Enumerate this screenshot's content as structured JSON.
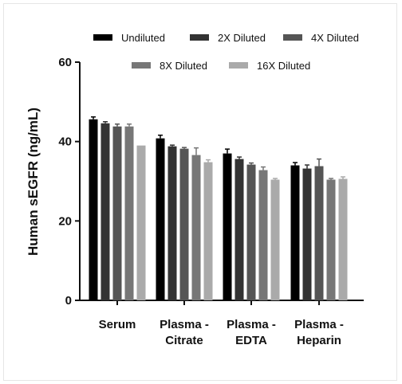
{
  "chart_data": {
    "type": "bar",
    "title": "",
    "xlabel": "",
    "ylabel": "Human sEGFR (ng/mL)",
    "ylim": [
      0,
      60
    ],
    "yticks": [
      0,
      20,
      40,
      60
    ],
    "grid": false,
    "legend_position": "top",
    "categories": [
      [
        "Serum"
      ],
      [
        "Plasma -",
        "Citrate"
      ],
      [
        "Plasma -",
        "EDTA"
      ],
      [
        "Plasma -",
        "Heparin"
      ]
    ],
    "series": [
      {
        "name": "Undiluted",
        "color": "#000000",
        "values": [
          45.6,
          40.8,
          37.0,
          34.0
        ],
        "errors": [
          0.6,
          0.8,
          1.1,
          0.7
        ]
      },
      {
        "name": "2X Diluted",
        "color": "#333333",
        "values": [
          44.6,
          38.8,
          35.6,
          33.2
        ],
        "errors": [
          0.4,
          0.3,
          0.5,
          0.9
        ]
      },
      {
        "name": "4X Diluted",
        "color": "#555555",
        "values": [
          43.8,
          38.2,
          34.2,
          33.8
        ],
        "errors": [
          0.6,
          0.3,
          0.4,
          1.8
        ]
      },
      {
        "name": "8X Diluted",
        "color": "#777777",
        "values": [
          43.8,
          36.6,
          32.8,
          30.4
        ],
        "errors": [
          0.6,
          1.8,
          0.8,
          0.3
        ]
      },
      {
        "name": "16X Diluted",
        "color": "#aaaaaa",
        "values": [
          39.0,
          34.8,
          30.4,
          30.6
        ],
        "errors": [
          0.0,
          0.6,
          0.3,
          0.5
        ]
      }
    ]
  }
}
